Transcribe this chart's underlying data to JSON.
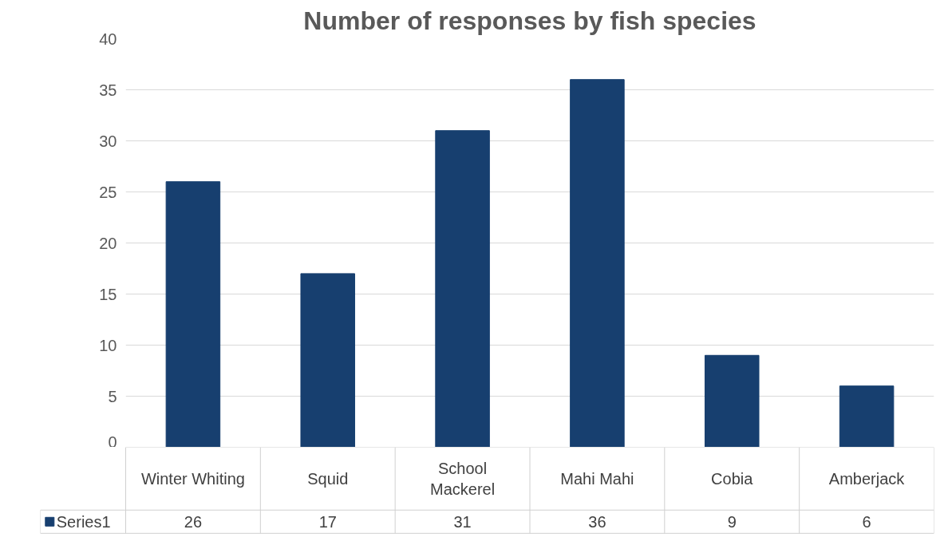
{
  "chart_data": {
    "type": "bar",
    "title": "Number of responses by fish species",
    "categories": [
      "Winter Whiting",
      "Squid",
      "School Mackerel",
      "Mahi Mahi",
      "Cobia",
      "Amberjack"
    ],
    "series": [
      {
        "name": "Series1",
        "color": "#173f6f",
        "values": [
          26,
          17,
          31,
          36,
          9,
          6
        ]
      }
    ],
    "ylim": [
      0,
      40
    ],
    "yticks": [
      0,
      5,
      10,
      15,
      20,
      25,
      30,
      35,
      40
    ],
    "grid": "y",
    "legend": "bottom",
    "data_labels": true
  }
}
